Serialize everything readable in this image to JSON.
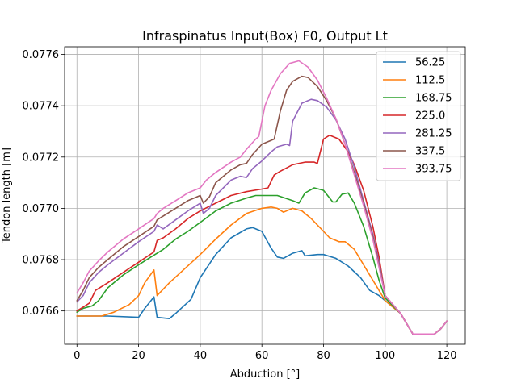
{
  "chart_data": {
    "type": "line",
    "title": "Infraspinatus Input(Box) F0, Output Lt",
    "xlabel": "Abduction [°]",
    "ylabel": "Tendon length [m]",
    "xlim": [
      -4,
      126
    ],
    "ylim": [
      0.07647,
      0.07763
    ],
    "xticks": [
      0,
      20,
      40,
      60,
      80,
      100,
      120
    ],
    "xtick_labels": [
      "0",
      "20",
      "40",
      "60",
      "80",
      "100",
      "120"
    ],
    "yticks": [
      0.0766,
      0.0768,
      0.077,
      0.0772,
      0.0774,
      0.0776
    ],
    "ytick_labels": [
      "0.0766",
      "0.0768",
      "0.0770",
      "0.0772",
      "0.0774",
      "0.0776"
    ],
    "grid": true,
    "legend_position": "top-right",
    "series": [
      {
        "name": "56.25",
        "color": "#1f77b4",
        "points": [
          [
            0,
            0.07658
          ],
          [
            10,
            0.07658
          ],
          [
            20,
            0.076575
          ],
          [
            22,
            0.07661
          ],
          [
            25,
            0.076655
          ],
          [
            26,
            0.076575
          ],
          [
            30,
            0.07657
          ],
          [
            32,
            0.07659
          ],
          [
            37,
            0.076645
          ],
          [
            40,
            0.07673
          ],
          [
            45,
            0.07682
          ],
          [
            50,
            0.076885
          ],
          [
            55,
            0.07692
          ],
          [
            57,
            0.076925
          ],
          [
            60,
            0.07691
          ],
          [
            63,
            0.076845
          ],
          [
            65,
            0.07681
          ],
          [
            67,
            0.076805
          ],
          [
            70,
            0.076825
          ],
          [
            73,
            0.076835
          ],
          [
            74,
            0.076815
          ],
          [
            78,
            0.07682
          ],
          [
            80,
            0.07682
          ],
          [
            84,
            0.076805
          ],
          [
            88,
            0.076775
          ],
          [
            92,
            0.07673
          ],
          [
            95,
            0.07668
          ],
          [
            98,
            0.07666
          ],
          [
            100,
            0.07664
          ],
          [
            105,
            0.07659
          ],
          [
            109,
            0.07651
          ],
          [
            113,
            0.07651
          ],
          [
            116,
            0.07651
          ],
          [
            118,
            0.07653
          ],
          [
            120,
            0.07656
          ]
        ]
      },
      {
        "name": "112.5",
        "color": "#ff7f0e",
        "points": [
          [
            0,
            0.07658
          ],
          [
            8,
            0.07658
          ],
          [
            12,
            0.076595
          ],
          [
            17,
            0.076625
          ],
          [
            20,
            0.07666
          ],
          [
            22,
            0.07671
          ],
          [
            25,
            0.07676
          ],
          [
            26,
            0.07666
          ],
          [
            30,
            0.07671
          ],
          [
            35,
            0.076765
          ],
          [
            40,
            0.07682
          ],
          [
            45,
            0.07688
          ],
          [
            50,
            0.076935
          ],
          [
            55,
            0.07698
          ],
          [
            60,
            0.077
          ],
          [
            63,
            0.077005
          ],
          [
            65,
            0.077
          ],
          [
            67,
            0.076985
          ],
          [
            70,
            0.077
          ],
          [
            73,
            0.07699
          ],
          [
            76,
            0.07696
          ],
          [
            80,
            0.07691
          ],
          [
            82,
            0.076885
          ],
          [
            85,
            0.07687
          ],
          [
            87,
            0.07687
          ],
          [
            90,
            0.07684
          ],
          [
            95,
            0.07674
          ],
          [
            98,
            0.07668
          ],
          [
            100,
            0.07664
          ],
          [
            105,
            0.07659
          ],
          [
            109,
            0.07651
          ],
          [
            113,
            0.07651
          ],
          [
            116,
            0.07651
          ],
          [
            118,
            0.07653
          ],
          [
            120,
            0.07656
          ]
        ]
      },
      {
        "name": "168.75",
        "color": "#2ca02c",
        "points": [
          [
            0,
            0.076595
          ],
          [
            2,
            0.07661
          ],
          [
            5,
            0.07662
          ],
          [
            7,
            0.07664
          ],
          [
            10,
            0.07669
          ],
          [
            15,
            0.07674
          ],
          [
            20,
            0.07678
          ],
          [
            24,
            0.07681
          ],
          [
            26,
            0.076825
          ],
          [
            28,
            0.07684
          ],
          [
            32,
            0.07688
          ],
          [
            36,
            0.07691
          ],
          [
            40,
            0.076945
          ],
          [
            45,
            0.07699
          ],
          [
            50,
            0.07702
          ],
          [
            55,
            0.07704
          ],
          [
            58,
            0.07705
          ],
          [
            60,
            0.07705
          ],
          [
            65,
            0.07705
          ],
          [
            70,
            0.07703
          ],
          [
            72,
            0.07702
          ],
          [
            74,
            0.07706
          ],
          [
            77,
            0.07708
          ],
          [
            80,
            0.07707
          ],
          [
            83,
            0.077025
          ],
          [
            84,
            0.077025
          ],
          [
            86,
            0.077055
          ],
          [
            88,
            0.07706
          ],
          [
            90,
            0.07702
          ],
          [
            93,
            0.07693
          ],
          [
            96,
            0.07681
          ],
          [
            98,
            0.07672
          ],
          [
            100,
            0.07665
          ],
          [
            105,
            0.07659
          ],
          [
            109,
            0.07651
          ],
          [
            113,
            0.07651
          ],
          [
            116,
            0.07651
          ],
          [
            118,
            0.07653
          ],
          [
            120,
            0.07656
          ]
        ]
      },
      {
        "name": "225.0",
        "color": "#d62728",
        "points": [
          [
            0,
            0.0766
          ],
          [
            2,
            0.076615
          ],
          [
            4,
            0.07663
          ],
          [
            6,
            0.07668
          ],
          [
            10,
            0.07671
          ],
          [
            15,
            0.07675
          ],
          [
            20,
            0.07679
          ],
          [
            25,
            0.07683
          ],
          [
            26,
            0.076875
          ],
          [
            28,
            0.076885
          ],
          [
            32,
            0.07692
          ],
          [
            36,
            0.07696
          ],
          [
            40,
            0.07699
          ],
          [
            45,
            0.07702
          ],
          [
            50,
            0.07705
          ],
          [
            55,
            0.077065
          ],
          [
            60,
            0.077075
          ],
          [
            62,
            0.07708
          ],
          [
            64,
            0.07713
          ],
          [
            66,
            0.077145
          ],
          [
            70,
            0.07717
          ],
          [
            74,
            0.07718
          ],
          [
            77,
            0.07718
          ],
          [
            78,
            0.077175
          ],
          [
            80,
            0.07727
          ],
          [
            82,
            0.077285
          ],
          [
            85,
            0.07727
          ],
          [
            88,
            0.07722
          ],
          [
            90,
            0.07717
          ],
          [
            93,
            0.07707
          ],
          [
            96,
            0.07693
          ],
          [
            98,
            0.07681
          ],
          [
            100,
            0.07666
          ],
          [
            105,
            0.07659
          ],
          [
            109,
            0.07651
          ],
          [
            113,
            0.07651
          ],
          [
            116,
            0.07651
          ],
          [
            118,
            0.07653
          ],
          [
            120,
            0.07656
          ]
        ]
      },
      {
        "name": "281.25",
        "color": "#9467bd",
        "points": [
          [
            0,
            0.076635
          ],
          [
            2,
            0.07666
          ],
          [
            4,
            0.07671
          ],
          [
            7,
            0.07675
          ],
          [
            10,
            0.07678
          ],
          [
            15,
            0.076825
          ],
          [
            20,
            0.07687
          ],
          [
            25,
            0.07691
          ],
          [
            26,
            0.076935
          ],
          [
            28,
            0.07692
          ],
          [
            32,
            0.076955
          ],
          [
            36,
            0.07699
          ],
          [
            40,
            0.07702
          ],
          [
            41,
            0.07698
          ],
          [
            43,
            0.077
          ],
          [
            45,
            0.07705
          ],
          [
            50,
            0.07711
          ],
          [
            53,
            0.077125
          ],
          [
            55,
            0.07712
          ],
          [
            57,
            0.077155
          ],
          [
            60,
            0.077185
          ],
          [
            63,
            0.07722
          ],
          [
            65,
            0.07724
          ],
          [
            68,
            0.07725
          ],
          [
            69,
            0.077245
          ],
          [
            70,
            0.07734
          ],
          [
            73,
            0.07741
          ],
          [
            76,
            0.077425
          ],
          [
            78,
            0.07742
          ],
          [
            81,
            0.077395
          ],
          [
            84,
            0.077345
          ],
          [
            87,
            0.07727
          ],
          [
            90,
            0.07716
          ],
          [
            93,
            0.07703
          ],
          [
            96,
            0.0769
          ],
          [
            98,
            0.07679
          ],
          [
            100,
            0.07666
          ],
          [
            105,
            0.07659
          ],
          [
            109,
            0.07651
          ],
          [
            113,
            0.07651
          ],
          [
            116,
            0.07651
          ],
          [
            118,
            0.07653
          ],
          [
            120,
            0.07656
          ]
        ]
      },
      {
        "name": "337.5",
        "color": "#8c564b",
        "points": [
          [
            0,
            0.07664
          ],
          [
            2,
            0.07668
          ],
          [
            4,
            0.07673
          ],
          [
            7,
            0.07677
          ],
          [
            10,
            0.0768
          ],
          [
            15,
            0.07685
          ],
          [
            20,
            0.07689
          ],
          [
            25,
            0.07693
          ],
          [
            26,
            0.076955
          ],
          [
            28,
            0.07697
          ],
          [
            32,
            0.077
          ],
          [
            36,
            0.07703
          ],
          [
            40,
            0.07705
          ],
          [
            41,
            0.07702
          ],
          [
            43,
            0.077045
          ],
          [
            45,
            0.0771
          ],
          [
            50,
            0.07715
          ],
          [
            53,
            0.07717
          ],
          [
            55,
            0.077175
          ],
          [
            57,
            0.07721
          ],
          [
            60,
            0.07725
          ],
          [
            63,
            0.077265
          ],
          [
            64,
            0.07727
          ],
          [
            66,
            0.07738
          ],
          [
            68,
            0.07746
          ],
          [
            70,
            0.077495
          ],
          [
            73,
            0.077515
          ],
          [
            75,
            0.07751
          ],
          [
            78,
            0.077475
          ],
          [
            81,
            0.07742
          ],
          [
            84,
            0.07735
          ],
          [
            87,
            0.07725
          ],
          [
            90,
            0.07714
          ],
          [
            93,
            0.07702
          ],
          [
            96,
            0.07689
          ],
          [
            98,
            0.07678
          ],
          [
            100,
            0.07666
          ],
          [
            105,
            0.07659
          ],
          [
            109,
            0.07651
          ],
          [
            113,
            0.07651
          ],
          [
            116,
            0.07651
          ],
          [
            118,
            0.07653
          ],
          [
            120,
            0.07656
          ]
        ]
      },
      {
        "name": "393.75",
        "color": "#e377c2",
        "points": [
          [
            0,
            0.07667
          ],
          [
            2,
            0.07671
          ],
          [
            4,
            0.076755
          ],
          [
            7,
            0.076795
          ],
          [
            10,
            0.07683
          ],
          [
            15,
            0.07688
          ],
          [
            20,
            0.07692
          ],
          [
            25,
            0.07696
          ],
          [
            26,
            0.07698
          ],
          [
            28,
            0.077
          ],
          [
            32,
            0.07703
          ],
          [
            36,
            0.07706
          ],
          [
            40,
            0.07708
          ],
          [
            42,
            0.07711
          ],
          [
            45,
            0.07714
          ],
          [
            50,
            0.07718
          ],
          [
            53,
            0.0772
          ],
          [
            55,
            0.07723
          ],
          [
            58,
            0.07727
          ],
          [
            59,
            0.07728
          ],
          [
            61,
            0.0774
          ],
          [
            63,
            0.07746
          ],
          [
            66,
            0.077525
          ],
          [
            69,
            0.077565
          ],
          [
            72,
            0.077575
          ],
          [
            75,
            0.07755
          ],
          [
            78,
            0.0775
          ],
          [
            81,
            0.07743
          ],
          [
            84,
            0.07735
          ],
          [
            87,
            0.07725
          ],
          [
            90,
            0.07713
          ],
          [
            93,
            0.07701
          ],
          [
            96,
            0.07688
          ],
          [
            98,
            0.07677
          ],
          [
            100,
            0.07666
          ],
          [
            105,
            0.07659
          ],
          [
            109,
            0.07651
          ],
          [
            113,
            0.07651
          ],
          [
            116,
            0.07651
          ],
          [
            118,
            0.07653
          ],
          [
            120,
            0.07656
          ]
        ]
      }
    ]
  }
}
